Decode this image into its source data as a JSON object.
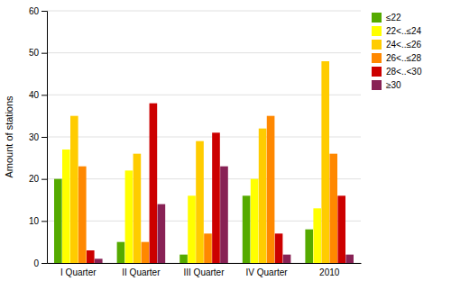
{
  "chart_data": {
    "type": "bar",
    "categories": [
      "I Quarter",
      "II Quarter",
      "III Quarter",
      "IV Quarter",
      "2010"
    ],
    "series": [
      {
        "name": "≤22",
        "color": "#55aa00",
        "values": [
          20,
          5,
          2,
          16,
          8
        ]
      },
      {
        "name": "22<..≤24",
        "color": "#ffff00",
        "values": [
          27,
          22,
          16,
          20,
          13
        ]
      },
      {
        "name": "24<..≤26",
        "color": "#ffcc00",
        "values": [
          35,
          26,
          29,
          32,
          48
        ]
      },
      {
        "name": "26<..≤28",
        "color": "#ff8800",
        "values": [
          23,
          5,
          7,
          35,
          26
        ]
      },
      {
        "name": "28<..<30",
        "color": "#cc0000",
        "values": [
          3,
          38,
          31,
          7,
          16
        ]
      },
      {
        "name": "≥30",
        "color": "#882255",
        "values": [
          1,
          14,
          23,
          2,
          2
        ]
      }
    ],
    "ylabel": "Amount of stations",
    "ylim": [
      0,
      60
    ],
    "yticks": [
      0,
      10,
      20,
      30,
      40,
      50,
      60
    ],
    "grid": true,
    "legend": "upper right"
  }
}
